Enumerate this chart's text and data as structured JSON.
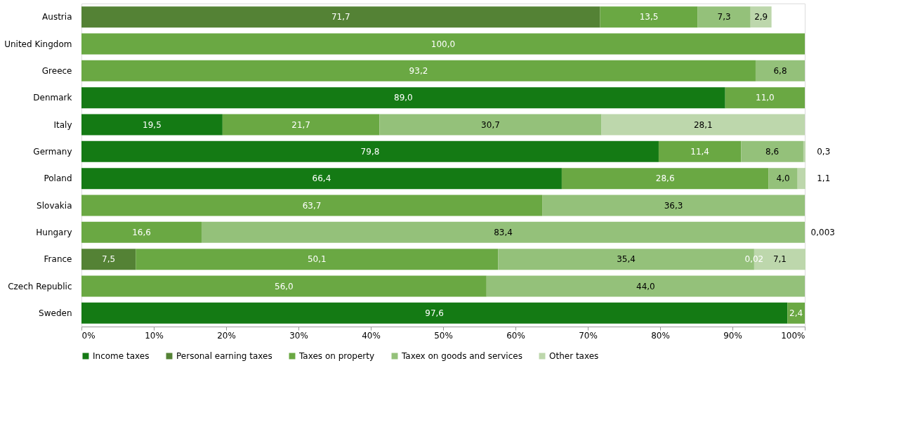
{
  "chart_data": {
    "type": "bar",
    "orientation": "horizontal",
    "stacked": true,
    "categories": [
      "Austria",
      "United Kingdom",
      "Greece",
      "Denmark",
      "Italy",
      "Germany",
      "Poland",
      "Slovakia",
      "Hungary",
      "France",
      "Czech Republic",
      "Sweden"
    ],
    "series": [
      {
        "name": "Income taxes",
        "color": "#147a14",
        "values": [
          null,
          null,
          null,
          89.0,
          19.5,
          79.8,
          66.4,
          null,
          null,
          null,
          null,
          97.6
        ],
        "value_labels": [
          null,
          null,
          null,
          "89,0",
          "19,5",
          "79,8",
          "66,4",
          null,
          null,
          null,
          null,
          "97,6"
        ]
      },
      {
        "name": "Personal earning taxes",
        "color": "#548235",
        "values": [
          71.7,
          null,
          null,
          null,
          null,
          null,
          null,
          null,
          null,
          7.5,
          null,
          null
        ],
        "value_labels": [
          "71,7",
          null,
          null,
          null,
          null,
          null,
          null,
          null,
          null,
          "7,5",
          null,
          null
        ]
      },
      {
        "name": "Taxes on property",
        "color": "#6aa843",
        "values": [
          13.5,
          100.0,
          93.2,
          11.0,
          21.7,
          11.4,
          28.6,
          63.7,
          16.6,
          50.1,
          56.0,
          2.4
        ],
        "value_labels": [
          "13,5",
          "100,0",
          "93,2",
          "11,0",
          "21,7",
          "11,4",
          "28,6",
          "63,7",
          "16,6",
          "50,1",
          "56,0",
          "2,4"
        ]
      },
      {
        "name": "Taxex on goods and services",
        "color": "#94c17a",
        "values": [
          7.3,
          null,
          6.8,
          null,
          30.7,
          8.6,
          4.0,
          36.3,
          83.4,
          35.4,
          44.0,
          null
        ],
        "value_labels": [
          "7,3",
          null,
          "6,8",
          null,
          "30,7",
          "8,6",
          "4,0",
          "36,3",
          "83,4",
          "35,4",
          "44,0",
          null
        ]
      },
      {
        "name": "Other taxes",
        "color": "#bdd7ac",
        "values": [
          2.9,
          null,
          null,
          null,
          28.1,
          0.3,
          1.1,
          null,
          0.003,
          7.1,
          null,
          null
        ],
        "value_labels": [
          "2,9",
          null,
          null,
          null,
          "28,1",
          "0,3",
          "1,1",
          null,
          "0,003",
          "7,1",
          null,
          null
        ]
      }
    ],
    "annotations": [
      {
        "text": "0,02",
        "x": 93,
        "y": "France"
      }
    ],
    "xlim": [
      0,
      100
    ],
    "xticks": [
      {
        "value": 0,
        "label": "0%"
      },
      {
        "value": 10,
        "label": "10%"
      },
      {
        "value": 20,
        "label": "20%"
      },
      {
        "value": 30,
        "label": "30%"
      },
      {
        "value": 40,
        "label": "40%"
      },
      {
        "value": 50,
        "label": "50%"
      },
      {
        "value": 60,
        "label": "60%"
      },
      {
        "value": 70,
        "label": "70%"
      },
      {
        "value": 80,
        "label": "80%"
      },
      {
        "value": 90,
        "label": "90%"
      },
      {
        "value": 100,
        "label": "100%"
      }
    ],
    "grid": false,
    "legend": "bottom"
  }
}
